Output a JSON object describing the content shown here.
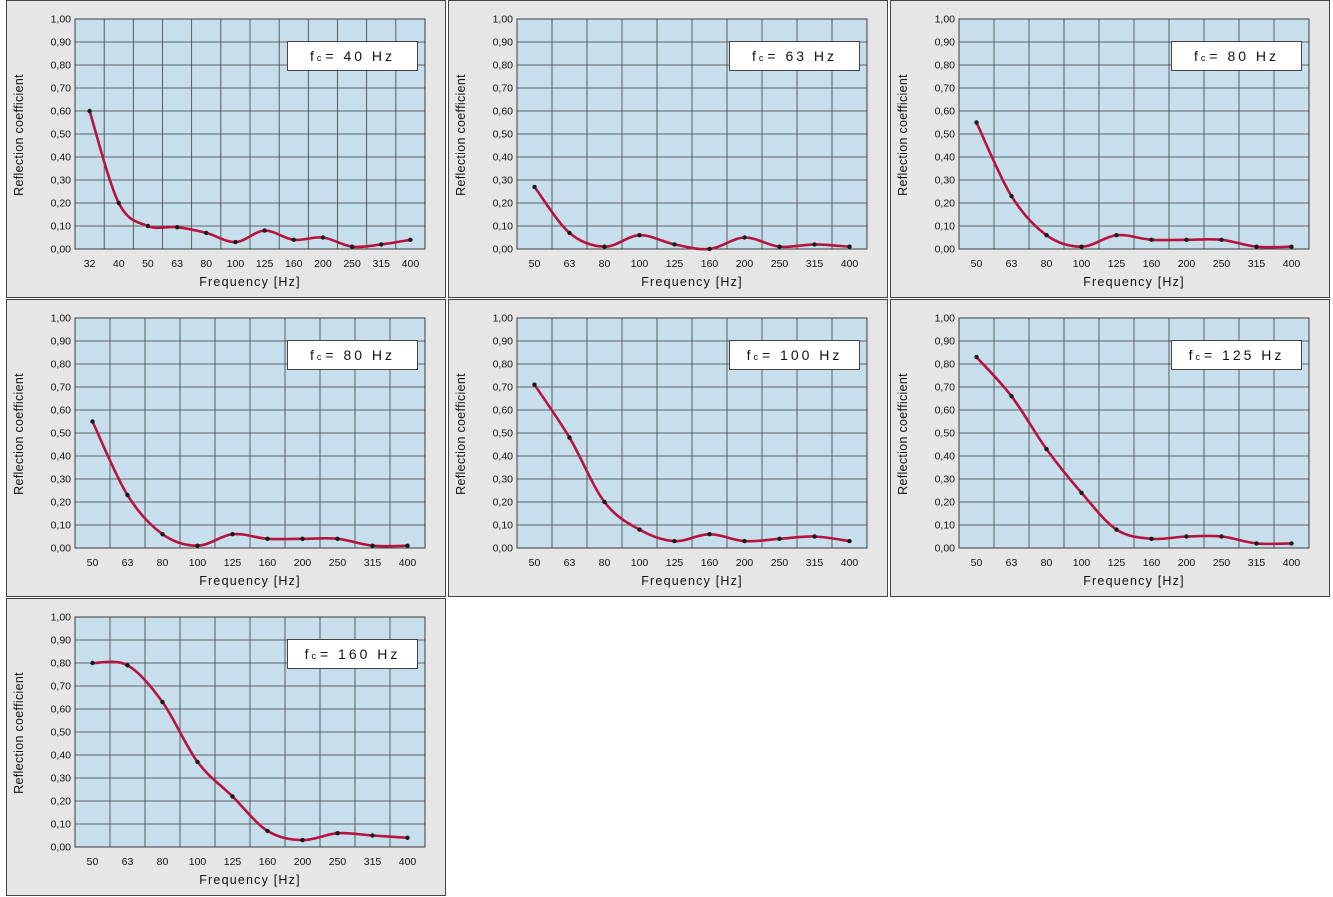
{
  "y_axis_label": "Reflection coefficient",
  "x_axis_label": "Frequency [Hz]",
  "y_ticks": [
    "0,00",
    "0,10",
    "0,20",
    "0,30",
    "0,40",
    "0,50",
    "0,60",
    "0,70",
    "0,80",
    "0,90",
    "1,00"
  ],
  "colors": {
    "plot_background": "#c7dfec",
    "grid": "#3d3d3d",
    "curve": "#b8133f",
    "point": "#1a1a1a",
    "panel_background": "#e6e6e6"
  },
  "chart_data": [
    {
      "type": "line",
      "fc_symbol": "f",
      "fc_subscript": "c",
      "fc_value": "= 40 Hz",
      "categories": [
        "32",
        "40",
        "50",
        "63",
        "80",
        "100",
        "125",
        "160",
        "200",
        "250",
        "315",
        "400"
      ],
      "values": [
        0.6,
        0.2,
        0.1,
        0.095,
        0.07,
        0.03,
        0.08,
        0.04,
        0.05,
        0.01,
        0.02,
        0.04
      ],
      "ylim": [
        0,
        1
      ],
      "grid": true
    },
    {
      "type": "line",
      "fc_symbol": "f",
      "fc_subscript": "c",
      "fc_value": "= 63 Hz",
      "categories": [
        "50",
        "63",
        "80",
        "100",
        "125",
        "160",
        "200",
        "250",
        "315",
        "400"
      ],
      "values": [
        0.27,
        0.07,
        0.01,
        0.06,
        0.02,
        0.0,
        0.05,
        0.01,
        0.02,
        0.01
      ],
      "ylim": [
        0,
        1
      ],
      "grid": true
    },
    {
      "type": "line",
      "fc_symbol": "f",
      "fc_subscript": "c",
      "fc_value": "= 80 Hz",
      "categories": [
        "50",
        "63",
        "80",
        "100",
        "125",
        "160",
        "200",
        "250",
        "315",
        "400"
      ],
      "values": [
        0.55,
        0.23,
        0.06,
        0.01,
        0.06,
        0.04,
        0.04,
        0.04,
        0.01,
        0.01
      ],
      "ylim": [
        0,
        1
      ],
      "grid": true
    },
    {
      "type": "line",
      "fc_symbol": "f",
      "fc_subscript": "c",
      "fc_value": "= 80 Hz",
      "categories": [
        "50",
        "63",
        "80",
        "100",
        "125",
        "160",
        "200",
        "250",
        "315",
        "400"
      ],
      "values": [
        0.55,
        0.23,
        0.06,
        0.01,
        0.06,
        0.04,
        0.04,
        0.04,
        0.01,
        0.01
      ],
      "ylim": [
        0,
        1
      ],
      "grid": true
    },
    {
      "type": "line",
      "fc_symbol": "f",
      "fc_subscript": "c",
      "fc_value": "= 100 Hz",
      "categories": [
        "50",
        "63",
        "80",
        "100",
        "125",
        "160",
        "200",
        "250",
        "315",
        "400"
      ],
      "values": [
        0.71,
        0.48,
        0.2,
        0.08,
        0.03,
        0.06,
        0.03,
        0.04,
        0.05,
        0.03
      ],
      "ylim": [
        0,
        1
      ],
      "grid": true
    },
    {
      "type": "line",
      "fc_symbol": "f",
      "fc_subscript": "c",
      "fc_value": "= 125 Hz",
      "categories": [
        "50",
        "63",
        "80",
        "100",
        "125",
        "160",
        "200",
        "250",
        "315",
        "400"
      ],
      "values": [
        0.83,
        0.66,
        0.43,
        0.24,
        0.08,
        0.04,
        0.05,
        0.05,
        0.02,
        0.02
      ],
      "ylim": [
        0,
        1
      ],
      "grid": true
    },
    {
      "type": "line",
      "fc_symbol": "f",
      "fc_subscript": "c",
      "fc_value": "= 160 Hz",
      "categories": [
        "50",
        "63",
        "80",
        "100",
        "125",
        "160",
        "200",
        "250",
        "315",
        "400"
      ],
      "values": [
        0.8,
        0.79,
        0.63,
        0.37,
        0.22,
        0.07,
        0.03,
        0.06,
        0.05,
        0.04
      ],
      "ylim": [
        0,
        1
      ],
      "grid": true
    }
  ]
}
